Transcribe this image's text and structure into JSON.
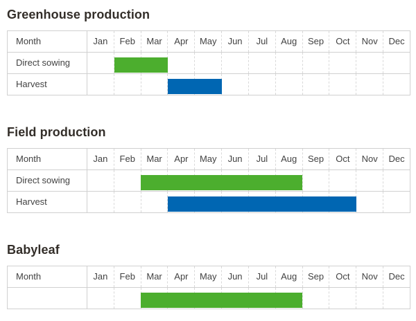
{
  "month_header_label": "Month",
  "months": [
    "Jan",
    "Feb",
    "Mar",
    "Apr",
    "May",
    "Jun",
    "Jul",
    "Aug",
    "Sep",
    "Oct",
    "Nov",
    "Dec"
  ],
  "colors": {
    "green": "#4cae2e",
    "blue": "#0066b2",
    "border_solid": "#d0d0d0",
    "border_dashed": "#d8d8d8",
    "title_text": "#332e29",
    "cell_text": "#424242"
  },
  "sections": [
    {
      "id": "greenhouse-production",
      "title": "Greenhouse production",
      "rows": [
        {
          "label": "Direct sowing",
          "bar": {
            "start_month": "Feb",
            "end_month": "Mar",
            "color": "green"
          }
        },
        {
          "label": "Harvest",
          "bar": {
            "start_month": "Apr",
            "end_month": "May",
            "color": "blue"
          }
        }
      ]
    },
    {
      "id": "field-production",
      "title": "Field production",
      "rows": [
        {
          "label": "Direct sowing",
          "bar": {
            "start_month": "Mar",
            "end_month": "Aug",
            "color": "green"
          }
        },
        {
          "label": "Harvest",
          "bar": {
            "start_month": "Apr",
            "end_month": "Oct",
            "color": "blue"
          }
        }
      ]
    },
    {
      "id": "babyleaf",
      "title": "Babyleaf",
      "rows": [
        {
          "label": "",
          "bar": {
            "start_month": "Mar",
            "end_month": "Aug",
            "color": "green"
          }
        }
      ]
    }
  ],
  "chart_data": [
    {
      "type": "bar",
      "subtype": "gantt",
      "title": "Greenhouse production",
      "xlabel": "Month",
      "x_categories": [
        "Jan",
        "Feb",
        "Mar",
        "Apr",
        "May",
        "Jun",
        "Jul",
        "Aug",
        "Sep",
        "Oct",
        "Nov",
        "Dec"
      ],
      "rows": [
        {
          "name": "Direct sowing",
          "start": "Feb",
          "end": "Mar",
          "months_span": 2,
          "color": "#4cae2e"
        },
        {
          "name": "Harvest",
          "start": "Apr",
          "end": "May",
          "months_span": 2,
          "color": "#0066b2"
        }
      ],
      "grid": "dashed-vertical-month-lines",
      "legend": "none"
    },
    {
      "type": "bar",
      "subtype": "gantt",
      "title": "Field production",
      "xlabel": "Month",
      "x_categories": [
        "Jan",
        "Feb",
        "Mar",
        "Apr",
        "May",
        "Jun",
        "Jul",
        "Aug",
        "Sep",
        "Oct",
        "Nov",
        "Dec"
      ],
      "rows": [
        {
          "name": "Direct sowing",
          "start": "Mar",
          "end": "Aug",
          "months_span": 6,
          "color": "#4cae2e"
        },
        {
          "name": "Harvest",
          "start": "Apr",
          "end": "Oct",
          "months_span": 7,
          "color": "#0066b2"
        }
      ],
      "grid": "dashed-vertical-month-lines",
      "legend": "none"
    },
    {
      "type": "bar",
      "subtype": "gantt",
      "title": "Babyleaf",
      "xlabel": "Month",
      "x_categories": [
        "Jan",
        "Feb",
        "Mar",
        "Apr",
        "May",
        "Jun",
        "Jul",
        "Aug",
        "Sep",
        "Oct",
        "Nov",
        "Dec"
      ],
      "rows": [
        {
          "name": "",
          "start": "Mar",
          "end": "Aug",
          "months_span": 6,
          "color": "#4cae2e"
        }
      ],
      "grid": "dashed-vertical-month-lines",
      "legend": "none"
    }
  ]
}
